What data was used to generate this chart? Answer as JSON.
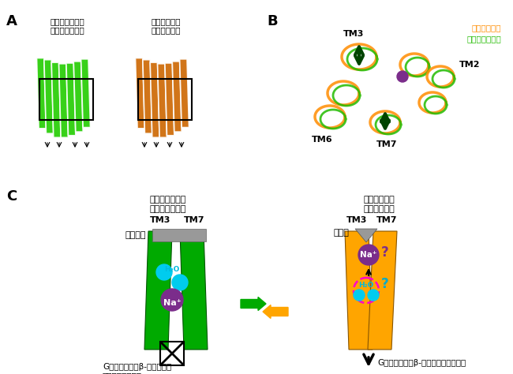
{
  "panel_labels": [
    [
      "A",
      8,
      18
    ],
    [
      "B",
      338,
      18
    ],
    [
      "C",
      8,
      240
    ]
  ],
  "panel_A_label_left": "逆作動薬結合型\n（不活性状態）",
  "panel_A_label_right": "作動薬結合型\n（活性状態）",
  "panel_B_legend": [
    "作動薬結合型",
    "逆作動薬結合型"
  ],
  "panel_B_legend_colors": [
    "#FF8C00",
    "#22BB00"
  ],
  "panel_C_left_title": "逆作動薬結合型\n（不活性状態）",
  "panel_C_right_title": "作動薬結合型\n（活性状態）",
  "panel_C_left_drug_label": "逆作動薬",
  "panel_C_right_drug_label": "作動薬",
  "panel_C_left_bottom": "Gタンパク質やβ-アレスチン\nを活性化できない",
  "panel_C_right_bottom": "Gタンパク質やβ-アレスチンを活性化",
  "tm_color_left": "#00AA00",
  "tm_color_right": "#FFA500",
  "drug_bar_color": "#999999",
  "na_color": "#7B2D8B",
  "water_color": "#00CCEE",
  "water_label_color": "#00BBDD",
  "question_color_purple": "#7B2D8B",
  "question_color_cyan": "#00AACC",
  "arrow_eq_color_left": "#00AA00",
  "arrow_eq_color_right": "#FFA500",
  "dashed_circle_color": "#FF00CC",
  "bg_color": "#FFFFFF",
  "green_protein": "#22CC00",
  "orange_protein": "#CC6600"
}
